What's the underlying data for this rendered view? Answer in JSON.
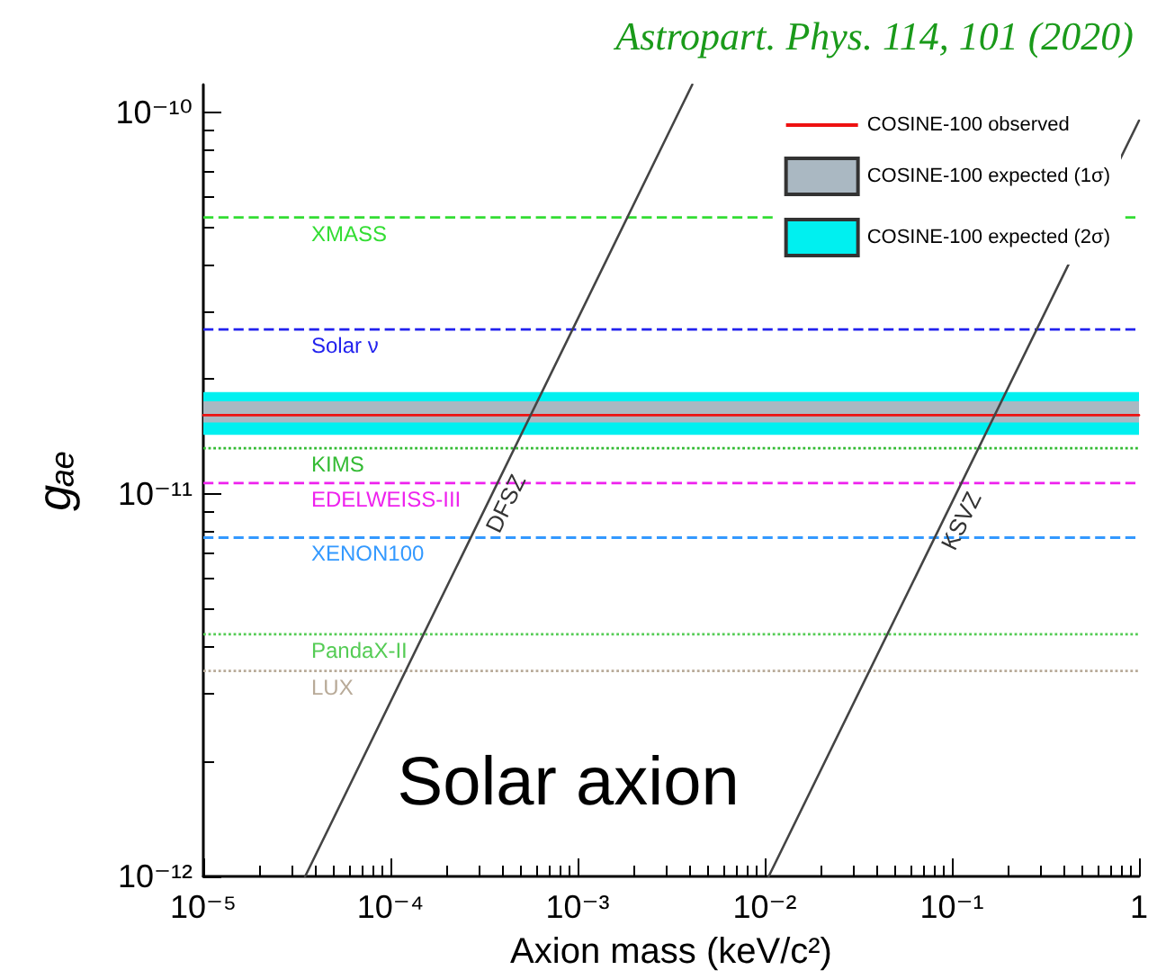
{
  "chart_data": {
    "type": "line",
    "title": "Astropart. Phys. 114, 101 (2020)",
    "xlabel": "Axion mass (keV/c²)",
    "ylabel": "gₐₑ",
    "log": "xy",
    "grid": false,
    "legend": "top right",
    "marker": "none",
    "line_style": "solid",
    "xlim": [
      1e-05,
      1
    ],
    "ylim": [
      1e-12,
      1.18e-10
    ],
    "xticks": [
      {
        "value": 1e-05,
        "label": "10⁻⁵"
      },
      {
        "value": 0.0001,
        "label": "10⁻⁴"
      },
      {
        "value": 0.001,
        "label": "10⁻³"
      },
      {
        "value": 0.01,
        "label": "10⁻²"
      },
      {
        "value": 0.1,
        "label": "10⁻¹"
      },
      1
    ],
    "yticks": [
      {
        "value": 1e-12,
        "label": "10⁻¹²"
      },
      {
        "value": 1e-11,
        "label": "10⁻¹¹"
      },
      {
        "value": 1e-10,
        "label": "10⁻¹⁰"
      }
    ],
    "series": [
      {
        "name": "COSINE-100 observed",
        "color": "#ee1111",
        "x": [
          1e-05,
          1
        ],
        "values": [
          1.61e-11,
          1.61e-11
        ]
      },
      {
        "name": "DFSZ",
        "color": "#444444",
        "x": [
          3.5e-05,
          0.0041
        ],
        "values": [
          1e-12,
          1.18e-10
        ]
      },
      {
        "name": "KSVZ",
        "color": "#444444",
        "x": [
          0.0105,
          1
        ],
        "values": [
          1e-12,
          9.5e-11
        ]
      }
    ],
    "bands": [
      {
        "axis": "y",
        "from": 1.54e-11,
        "to": 1.75e-11,
        "label": "COSINE-100 expected (1σ)",
        "color": "#aab8c2"
      },
      {
        "axis": "y",
        "from": 1.43e-11,
        "to": 1.85e-11,
        "label": "COSINE-100 expected (2σ)",
        "color": "#00f0f0"
      }
    ],
    "ref_lines": [
      {
        "axis": "y",
        "value": 5.3e-11,
        "label": "XMASS",
        "color": "#33dd33",
        "line_style": "dashed"
      },
      {
        "axis": "y",
        "value": 2.7e-11,
        "label": "Solar ν",
        "color": "#2222ee",
        "line_style": "dashed"
      },
      {
        "axis": "y",
        "value": 1.32e-11,
        "label": "KIMS",
        "color": "#33bb33",
        "line_style": "dotted"
      },
      {
        "axis": "y",
        "value": 1.07e-11,
        "label": "EDELWEISS-III",
        "color": "#ee22ee",
        "line_style": "dashed"
      },
      {
        "axis": "y",
        "value": 7.7e-12,
        "label": "XENON100",
        "color": "#3399ff",
        "line_style": "dashed"
      },
      {
        "axis": "y",
        "value": 4.3e-12,
        "label": "PandaX-II",
        "color": "#55cc55",
        "line_style": "dotted"
      },
      {
        "axis": "y",
        "value": 3.45e-12,
        "label": "LUX",
        "color": "#b8aa98",
        "line_style": "dotted"
      }
    ],
    "annotations": [
      "Solar axion"
    ]
  }
}
